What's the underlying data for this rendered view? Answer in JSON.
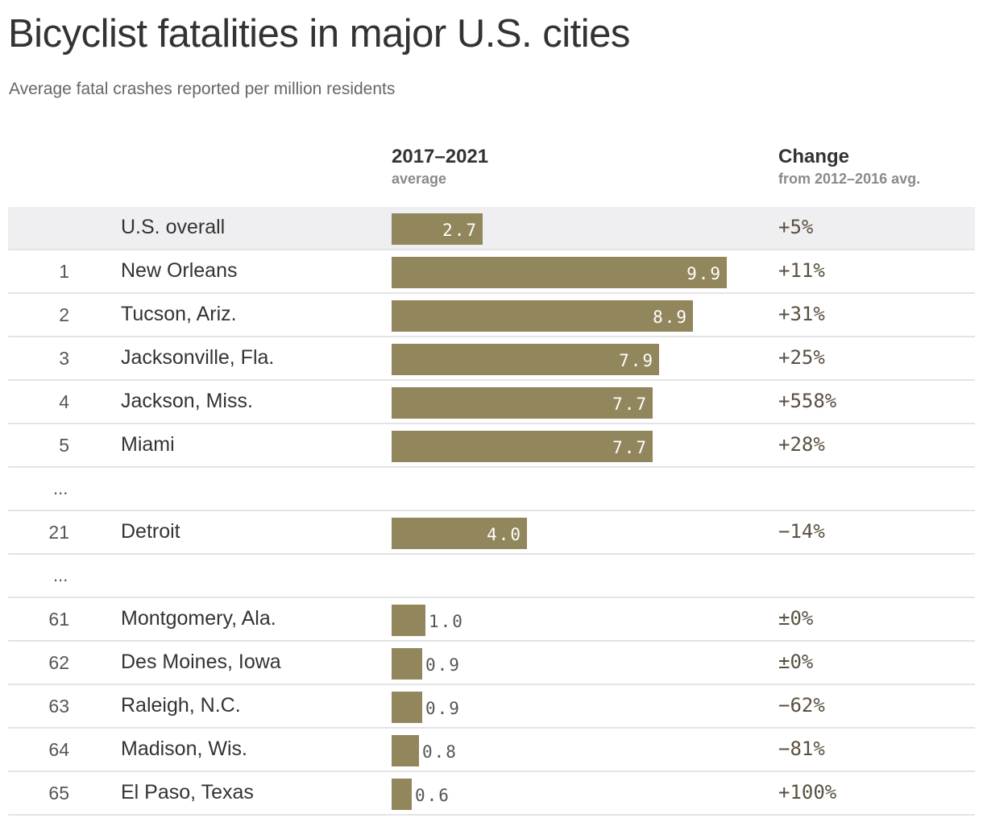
{
  "chart_data": {
    "type": "bar",
    "title": "Bicyclist fatalities in major U.S. cities",
    "subtitle": "Average fatal crashes reported per million residents",
    "columns": {
      "average": {
        "label": "2017–2021",
        "sublabel": "average"
      },
      "change": {
        "label": "Change",
        "sublabel": "from 2012–2016 avg."
      }
    },
    "gap_label": "...",
    "rows": [
      {
        "rank": "",
        "city": "U.S. overall",
        "value": 2.7,
        "value_label": "2.7",
        "change": "+5%",
        "highlight": true
      },
      {
        "rank": "1",
        "city": "New Orleans",
        "value": 9.9,
        "value_label": "9.9",
        "change": "+11%"
      },
      {
        "rank": "2",
        "city": "Tucson, Ariz.",
        "value": 8.9,
        "value_label": "8.9",
        "change": "+31%"
      },
      {
        "rank": "3",
        "city": "Jacksonville, Fla.",
        "value": 7.9,
        "value_label": "7.9",
        "change": "+25%"
      },
      {
        "rank": "4",
        "city": "Jackson, Miss.",
        "value": 7.7,
        "value_label": "7.7",
        "change": "+558%"
      },
      {
        "rank": "5",
        "city": "Miami",
        "value": 7.7,
        "value_label": "7.7",
        "change": "+28%"
      },
      {
        "gap": true
      },
      {
        "rank": "21",
        "city": "Detroit",
        "value": 4.0,
        "value_label": "4.0",
        "change": "−14%"
      },
      {
        "gap": true
      },
      {
        "rank": "61",
        "city": "Montgomery, Ala.",
        "value": 1.0,
        "value_label": "1.0",
        "change": "±0%"
      },
      {
        "rank": "62",
        "city": "Des Moines, Iowa",
        "value": 0.9,
        "value_label": "0.9",
        "change": "±0%"
      },
      {
        "rank": "63",
        "city": "Raleigh, N.C.",
        "value": 0.9,
        "value_label": "0.9",
        "change": "−62%"
      },
      {
        "rank": "64",
        "city": "Madison, Wis.",
        "value": 0.8,
        "value_label": "0.8",
        "change": "−81%"
      },
      {
        "rank": "65",
        "city": "El Paso, Texas",
        "value": 0.6,
        "value_label": "0.6",
        "change": "+100%"
      }
    ],
    "xlim": [
      0,
      9.9
    ]
  },
  "colors": {
    "bar": "#92865c",
    "highlight_row": "#efeff1"
  }
}
